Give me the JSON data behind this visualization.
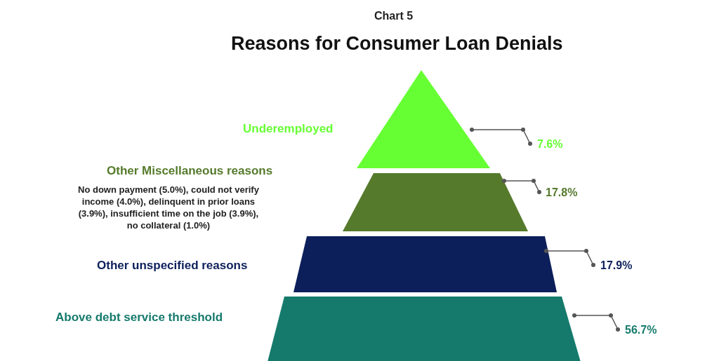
{
  "chart_data": {
    "type": "other",
    "subtitle": "Chart 5",
    "title": "Reasons for Consumer Loan Denials",
    "categories": [
      "Underemployed",
      "Other Miscellaneous reasons",
      "Other unspecified reasons",
      "Above debt service threshold"
    ],
    "values": [
      7.6,
      17.8,
      17.9,
      56.7
    ],
    "value_labels": [
      "7.6%",
      "17.8%",
      "17.9%",
      "56.7%"
    ],
    "colors": [
      "#66ff33",
      "#557a2c",
      "#0c1f5a",
      "#157a6c"
    ],
    "annotations": [
      "No down payment (5.0%), could not verify income (4.0%), delinquent in prior loans (3.9%), insufficient time on the job (3.9%), no collateral (1.0%)"
    ]
  }
}
